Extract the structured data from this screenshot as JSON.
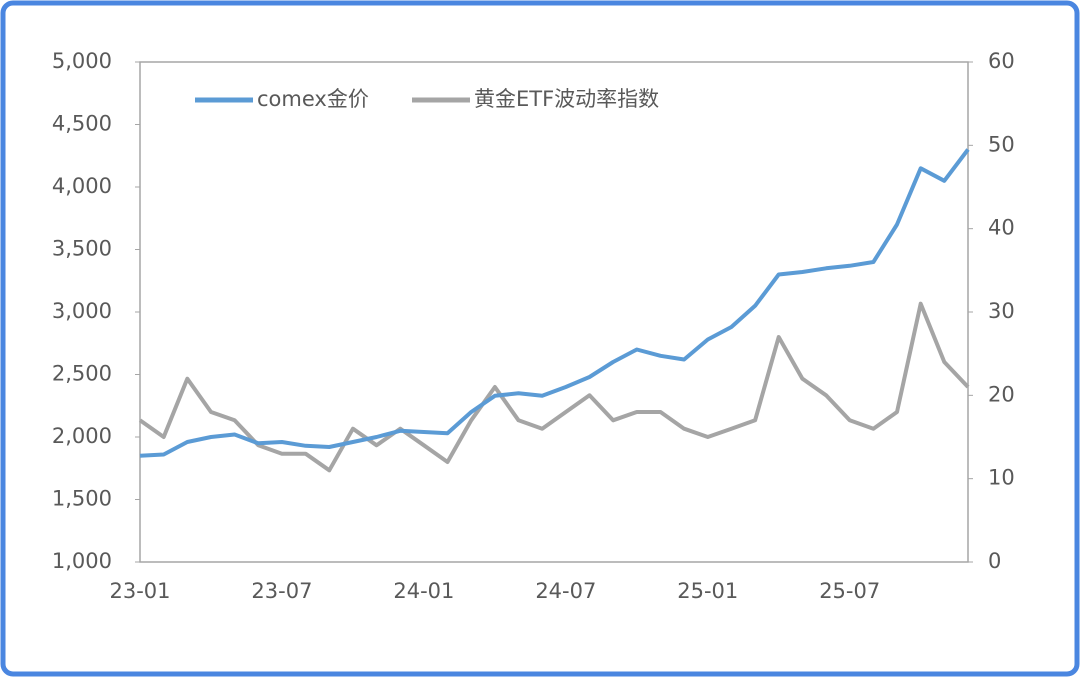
{
  "chart_data": {
    "type": "line",
    "categories": [
      "23-01",
      null,
      null,
      null,
      null,
      null,
      "23-07",
      null,
      null,
      null,
      null,
      null,
      "24-01",
      null,
      null,
      null,
      null,
      null,
      "24-07",
      null,
      null,
      null,
      null,
      null,
      "25-01",
      null,
      null,
      null,
      null,
      null,
      "25-07",
      null,
      null,
      null,
      null,
      null
    ],
    "series": [
      {
        "name": "comex金价",
        "color": "#5b9bd5",
        "axis": "y",
        "values": [
          1850,
          1860,
          1960,
          2000,
          2020,
          1950,
          1960,
          1930,
          1920,
          1960,
          2000,
          2050,
          2040,
          2030,
          2200,
          2330,
          2350,
          2330,
          2400,
          2480,
          2600,
          2700,
          2650,
          2620,
          2780,
          2880,
          3050,
          3300,
          3320,
          3350,
          3370,
          3400,
          3700,
          4150,
          4050,
          4300
        ]
      },
      {
        "name": "黄金ETF波动率指数",
        "color": "#a5a5a5",
        "axis": "y2",
        "values": [
          17,
          15,
          22,
          18,
          17,
          14,
          13,
          13,
          11,
          16,
          14,
          16,
          14,
          12,
          17,
          21,
          17,
          16,
          18,
          20,
          17,
          18,
          18,
          16,
          15,
          16,
          17,
          27,
          22,
          20,
          17,
          16,
          18,
          31,
          24,
          21
        ]
      }
    ],
    "ylim": [
      1000,
      5000
    ],
    "yticks": [
      {
        "value": 1000,
        "label": "1,000"
      },
      {
        "value": 1500,
        "label": "1,500"
      },
      {
        "value": 2000,
        "label": "2,000"
      },
      {
        "value": 2500,
        "label": "2,500"
      },
      {
        "value": 3000,
        "label": "3,000"
      },
      {
        "value": 3500,
        "label": "3,500"
      },
      {
        "value": 4000,
        "label": "4,000"
      },
      {
        "value": 4500,
        "label": "4,500"
      },
      {
        "value": 5000,
        "label": "5,000"
      }
    ],
    "y2lim": [
      0,
      60
    ],
    "y2ticks": [
      0,
      10,
      20,
      30,
      40,
      50,
      60
    ],
    "legend": "top-left",
    "grid": false
  }
}
